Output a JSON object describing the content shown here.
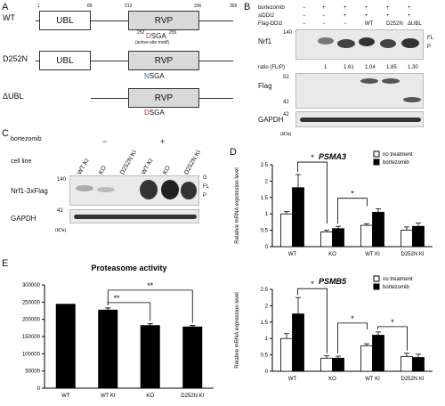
{
  "panel_a": {
    "letter": "A",
    "wt_label": "WT",
    "d252n_label": "D252N",
    "dubl_label": "ΔUBL",
    "pos_1": "1",
    "pos_89": "89",
    "pos_212": "212",
    "pos_336": "336",
    "pos_399": "399",
    "ubl": "UBL",
    "rvp": "RVP",
    "motif_pos_252": "252",
    "motif_pos_255": "255",
    "motif_d": "D",
    "motif_sga": "SGA",
    "motif_note": "(active-site motif)",
    "d252n_motif_n": "N",
    "d252n_motif_sga": "SGA",
    "dubl_motif_d": "D",
    "dubl_motif_sga": "SGA"
  },
  "panel_b": {
    "letter": "B",
    "rows": [
      {
        "label": "bortezomib",
        "vals": [
          "−",
          "+",
          "+",
          "+",
          "+",
          "+"
        ]
      },
      {
        "label": "siDDI2",
        "vals": [
          "−",
          "−",
          "+",
          "+",
          "+",
          "+"
        ]
      },
      {
        "label": "Flag-DDI2",
        "vals": [
          "−",
          "−",
          "−",
          "WT",
          "D252N",
          "ΔUBL"
        ]
      }
    ],
    "nrf1": "Nrf1",
    "fl": "FL",
    "p": "P",
    "ratio_label": "ratio (FL/P)",
    "ratios": [
      "1",
      "1.61",
      "1.04",
      "1.85",
      "1.30"
    ],
    "flag": "Flag",
    "gapdh": "GAPDH",
    "mw_140": "140",
    "mw_52": "52",
    "mw_42": "42",
    "mw_42b": "42",
    "kda": "(kDa)"
  },
  "panel_c": {
    "letter": "C",
    "bortezomib": "bortezomib",
    "minus": "−",
    "plus": "+",
    "cell_line": "cell line",
    "lanes": [
      "WT KI",
      "KO",
      "D252N KI",
      "WT KI",
      "KO",
      "D252N KI"
    ],
    "nrf1": "Nrf1-3xFlag",
    "gapdh": "GAPDH",
    "g": "G",
    "fl": "FL",
    "p": "P",
    "mw_140": "140",
    "mw_42": "42",
    "kda": "(kDa)"
  },
  "panel_d": {
    "letter": "D"
  },
  "panel_e": {
    "letter": "E"
  },
  "chart_data": [
    {
      "type": "bar",
      "title": "PSMA3",
      "ylabel": "Relative mRNA expression level",
      "categories": [
        "WT",
        "KO",
        "WT KI",
        "D252N KI"
      ],
      "series": [
        {
          "name": "no treatment",
          "values": [
            1.0,
            0.45,
            0.65,
            0.5
          ],
          "errors": [
            0.07,
            0.05,
            0.05,
            0.1
          ],
          "color": "#ffffff"
        },
        {
          "name": "bortezomib",
          "values": [
            1.8,
            0.55,
            1.05,
            0.62
          ],
          "errors": [
            0.4,
            0.07,
            0.1,
            0.1
          ],
          "color": "#000000"
        }
      ],
      "ylim": [
        0,
        2.5
      ],
      "yticks": [
        "0",
        "0.5",
        "1",
        "1.5",
        "2",
        "2.5"
      ],
      "significance": [
        "*",
        "*"
      ]
    },
    {
      "type": "bar",
      "title": "PSMB5",
      "ylabel": "Relative mRNA expression level",
      "categories": [
        "WT",
        "KO",
        "WT KI",
        "D252N KI"
      ],
      "series": [
        {
          "name": "no treatment",
          "values": [
            1.0,
            0.4,
            0.78,
            0.45
          ],
          "errors": [
            0.15,
            0.07,
            0.06,
            0.1
          ],
          "color": "#ffffff"
        },
        {
          "name": "bortezomib",
          "values": [
            1.75,
            0.4,
            1.1,
            0.42
          ],
          "errors": [
            0.5,
            0.06,
            0.1,
            0.1
          ],
          "color": "#000000"
        }
      ],
      "ylim": [
        0,
        2.5
      ],
      "yticks": [
        "0",
        "0.5",
        "1",
        "1.5",
        "2",
        "2.5"
      ],
      "significance": [
        "*",
        "*",
        "*"
      ]
    },
    {
      "type": "bar",
      "title": "Proteasome activity",
      "categories": [
        "WT",
        "WT KI",
        "KO",
        "D252N KI"
      ],
      "values": [
        245000,
        228000,
        183000,
        179000
      ],
      "errors": [
        0,
        5000,
        4000,
        3000
      ],
      "ylim": [
        0,
        300000
      ],
      "yticks": [
        "0",
        "50000",
        "100000",
        "150000",
        "200000",
        "250000",
        "300000"
      ],
      "significance": [
        "**",
        "**"
      ]
    }
  ]
}
